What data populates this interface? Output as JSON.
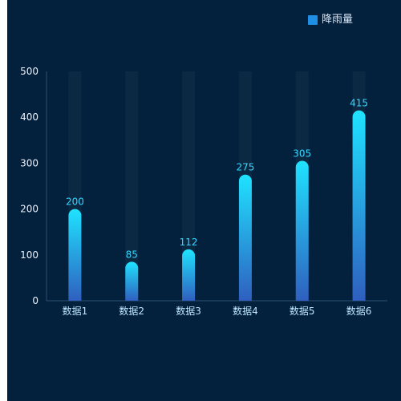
{
  "legend": {
    "label": "降雨量",
    "swatch_color": "#1f8fe5"
  },
  "colors": {
    "background": "#03203c",
    "page_edge": "#ffffff",
    "axis": "#2c4f75",
    "track": "#0c2944",
    "bar_top": "#1fe3ff",
    "bar_bottom": "#2f5fbf",
    "value_label": "#33d6ff",
    "tick_label": "#eaf3ff",
    "category_label": "#bfe7ff"
  },
  "chart_data": {
    "type": "bar",
    "categories": [
      "数据1",
      "数据2",
      "数据3",
      "数据4",
      "数据5",
      "数据6"
    ],
    "series": [
      {
        "name": "降雨量",
        "values": [
          200,
          85,
          112,
          275,
          305,
          415
        ]
      }
    ],
    "y_ticks": [
      0,
      100,
      200,
      300,
      400,
      500
    ],
    "ylim": [
      0,
      500
    ],
    "grid": false,
    "legend_position": "top-right",
    "show_background_bars": true,
    "show_value_labels": true
  }
}
